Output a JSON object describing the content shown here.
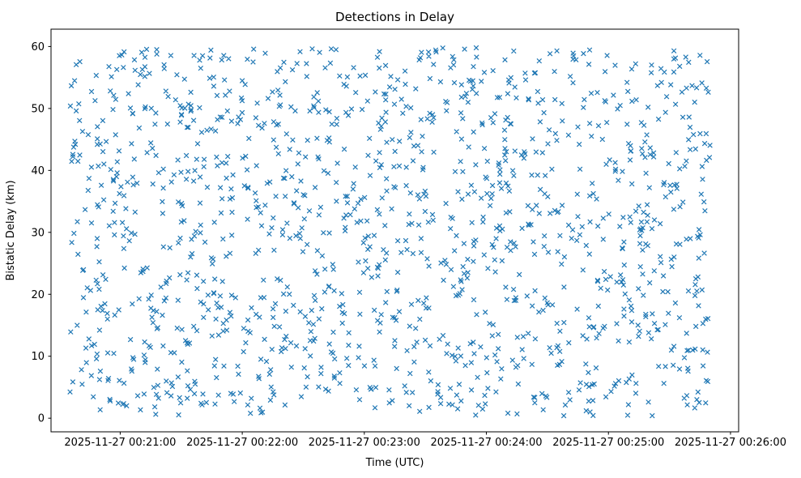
{
  "chart_data": {
    "type": "scatter",
    "title": "Detections in Delay",
    "xlabel": "Time (UTC)",
    "ylabel": "Bistatic Delay (km)",
    "marker": "x",
    "marker_color": "#1f77b4",
    "grid": false,
    "legend": "none",
    "x_tick_labels": [
      "2025-11-27 00:21:00",
      "2025-11-27 00:22:00",
      "2025-11-27 00:23:00",
      "2025-11-27 00:24:00",
      "2025-11-27 00:25:00",
      "2025-11-27 00:26:00"
    ],
    "x_ticks_seconds": [
      60,
      120,
      180,
      240,
      300,
      360
    ],
    "y_ticks": [
      0,
      10,
      20,
      30,
      40,
      50,
      60
    ],
    "x_lim_seconds": [
      26,
      364
    ],
    "y_lim": [
      -2.2,
      62.8
    ],
    "points_generator": {
      "distribution": "uniform",
      "n_points": 1450,
      "seed": 42,
      "x_range_seconds": [
        35,
        350
      ],
      "y_range": [
        0.4,
        59.8
      ]
    }
  }
}
